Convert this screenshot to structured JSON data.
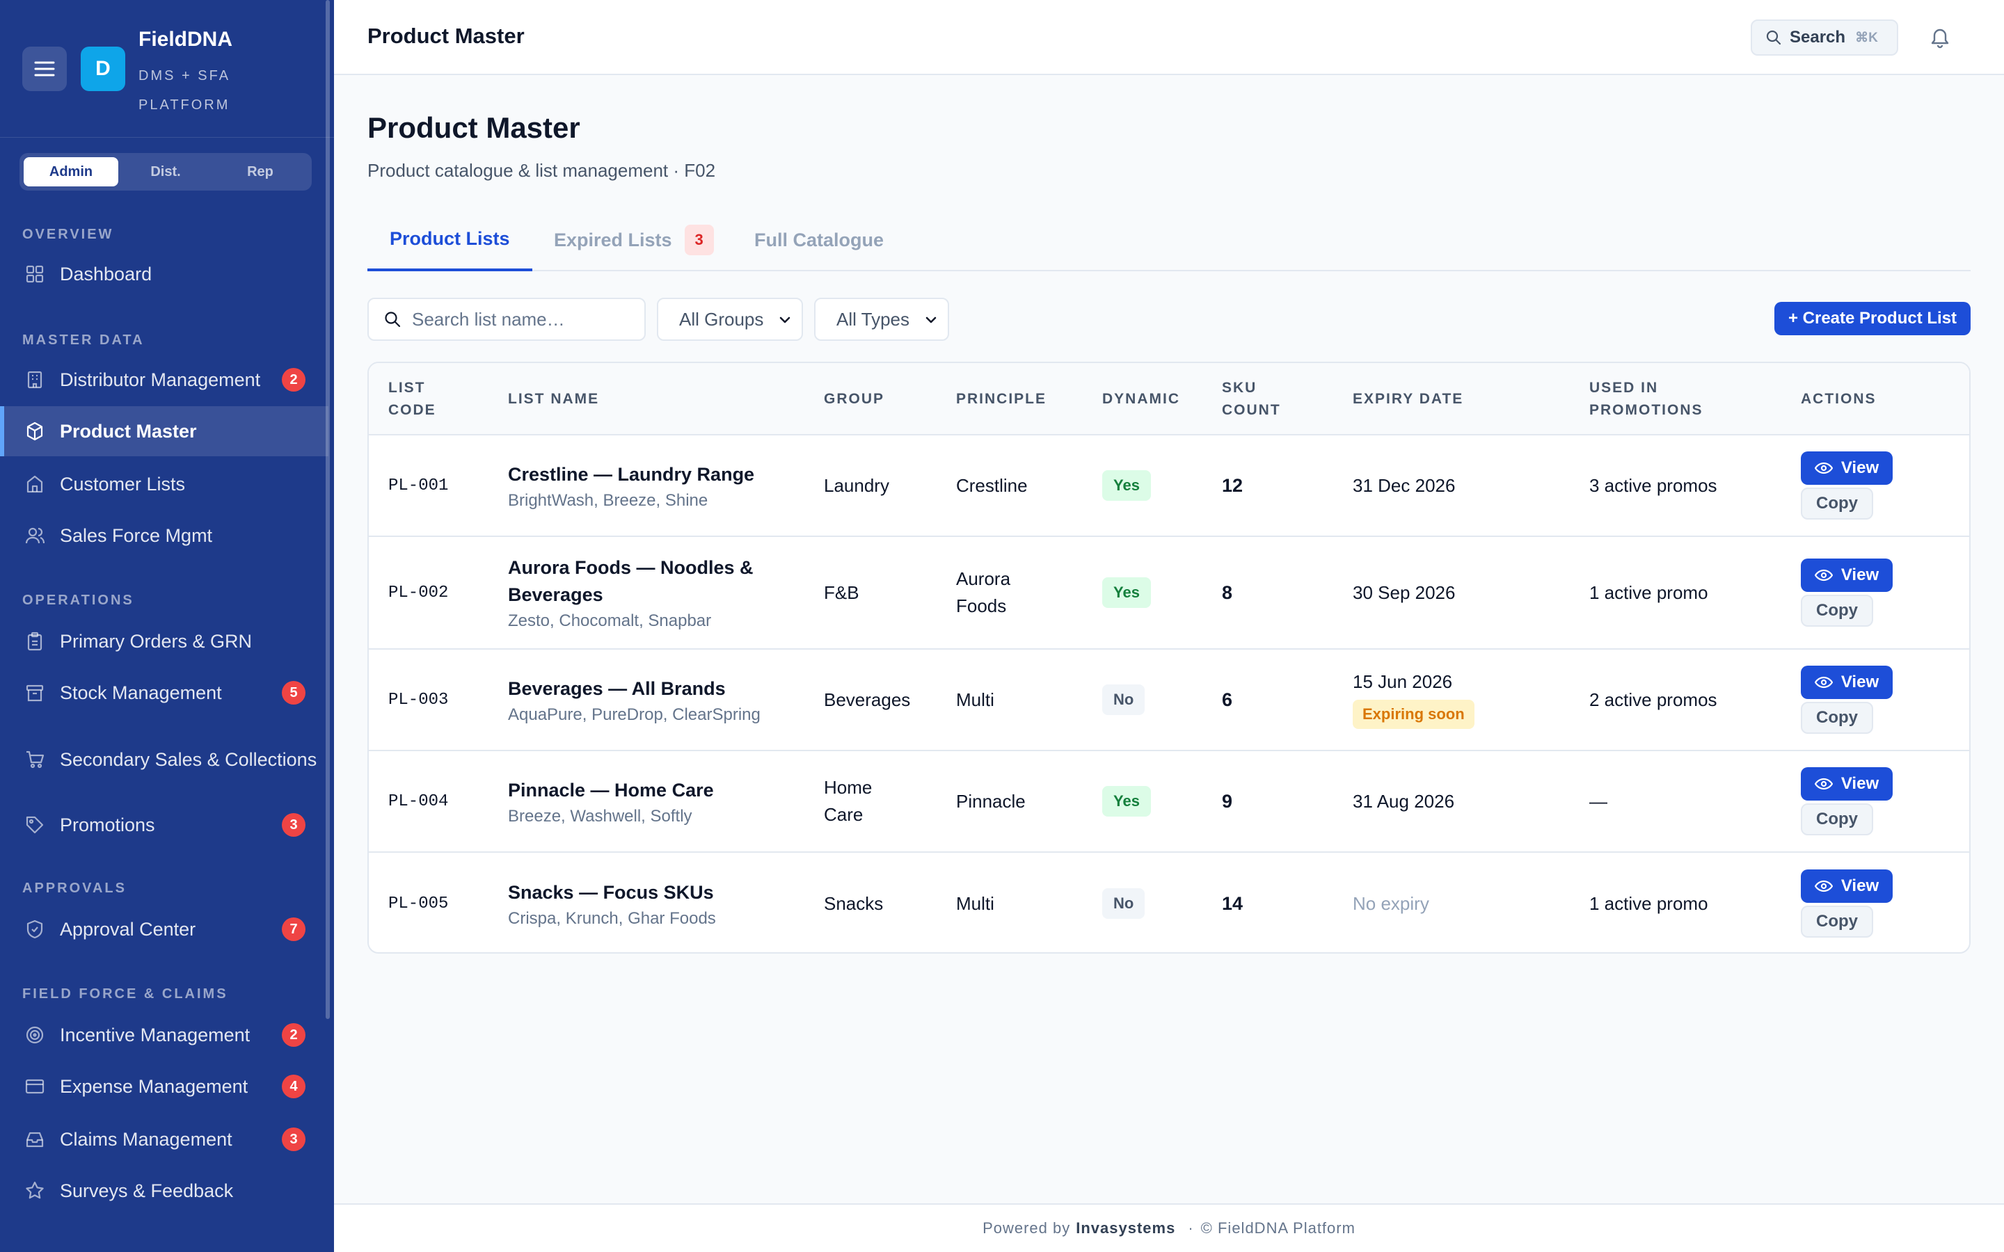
{
  "brand": {
    "logo_letter": "D",
    "name": "FieldDNA",
    "subtitle": "DMS + SFA PLATFORM"
  },
  "roles": [
    "Admin",
    "Dist.",
    "Rep"
  ],
  "sidebar": {
    "sections": [
      "OVERVIEW",
      "MASTER DATA",
      "OPERATIONS",
      "APPROVALS",
      "FIELD FORCE & CLAIMS"
    ],
    "items": [
      {
        "label": "Dashboard",
        "icon": "grid-icon"
      },
      {
        "label": "Distributor Management",
        "icon": "building-icon",
        "badge": "2"
      },
      {
        "label": "Product Master",
        "icon": "cube-icon"
      },
      {
        "label": "Customer Lists",
        "icon": "store-icon"
      },
      {
        "label": "Sales Force Mgmt",
        "icon": "users-icon"
      },
      {
        "label": "Primary Orders & GRN",
        "icon": "clipboard-icon"
      },
      {
        "label": "Stock Management",
        "icon": "archive-icon",
        "badge": "5"
      },
      {
        "label": "Secondary Sales & Collections",
        "icon": "cart-icon"
      },
      {
        "label": "Promotions",
        "icon": "tag-icon",
        "badge": "3"
      },
      {
        "label": "Approval Center",
        "icon": "shield-icon",
        "badge": "7"
      },
      {
        "label": "Incentive Management",
        "icon": "target-icon",
        "badge": "2"
      },
      {
        "label": "Expense Management",
        "icon": "card-icon",
        "badge": "4"
      },
      {
        "label": "Claims Management",
        "icon": "inbox-icon",
        "badge": "3"
      },
      {
        "label": "Surveys & Feedback",
        "icon": "star-icon"
      }
    ]
  },
  "header": {
    "title": "Product Master",
    "search_label": "Search",
    "search_shortcut": "⌘K"
  },
  "page": {
    "title": "Product Master",
    "subtitle": "Product catalogue & list management · F02"
  },
  "tabs": [
    {
      "label": "Product Lists"
    },
    {
      "label": "Expired Lists",
      "count": "3"
    },
    {
      "label": "Full Catalogue"
    }
  ],
  "filters": {
    "search_placeholder": "Search list name…",
    "group_select": "All Groups",
    "type_select": "All Types"
  },
  "create_button": "+ Create Product List",
  "table": {
    "headers": [
      "LIST CODE",
      "LIST NAME",
      "GROUP",
      "PRINCIPLE",
      "DYNAMIC",
      "SKU COUNT",
      "EXPIRY DATE",
      "USED IN PROMOTIONS",
      "ACTIONS"
    ],
    "view_label": "View",
    "copy_label": "Copy",
    "rows": [
      {
        "code": "PL-001",
        "name": "Crestline — Laundry Range",
        "brands": "BrightWash, Breeze, Shine",
        "group": "Laundry",
        "principle": "Crestline",
        "dynamic": "Yes",
        "sku": "12",
        "expiry": "31 Dec 2026",
        "expiry_note": "",
        "promos": "3 active promos"
      },
      {
        "code": "PL-002",
        "name": "Aurora Foods — Noodles & Beverages",
        "brands": "Zesto, Chocomalt, Snapbar",
        "group": "F&B",
        "principle": "Aurora Foods",
        "dynamic": "Yes",
        "sku": "8",
        "expiry": "30 Sep 2026",
        "expiry_note": "",
        "promos": "1 active promo"
      },
      {
        "code": "PL-003",
        "name": "Beverages — All Brands",
        "brands": "AquaPure, PureDrop, ClearSpring",
        "group": "Beverages",
        "principle": "Multi",
        "dynamic": "No",
        "sku": "6",
        "expiry": "15 Jun 2026",
        "expiry_note": "Expiring soon",
        "promos": "2 active promos"
      },
      {
        "code": "PL-004",
        "name": "Pinnacle — Home Care",
        "brands": "Breeze, Washwell, Softly",
        "group": "Home Care",
        "principle": "Pinnacle",
        "dynamic": "Yes",
        "sku": "9",
        "expiry": "31 Aug 2026",
        "expiry_note": "",
        "promos": "—"
      },
      {
        "code": "PL-005",
        "name": "Snacks — Focus SKUs",
        "brands": "Crispa, Krunch, Ghar Foods",
        "group": "Snacks",
        "principle": "Multi",
        "dynamic": "No",
        "sku": "14",
        "expiry": "No expiry",
        "expiry_note": "",
        "promos": "1 active promo"
      }
    ]
  },
  "footer": {
    "powered": "Powered by",
    "company": "Invasystems",
    "sep": "·",
    "copyright": "© FieldDNA Platform"
  },
  "colors": {
    "sidebar": "#1e3a8a",
    "accent": "#1d4ed8",
    "badge": "#ef4444",
    "yes": "#dcfce7",
    "warn": "#fef3c7"
  }
}
